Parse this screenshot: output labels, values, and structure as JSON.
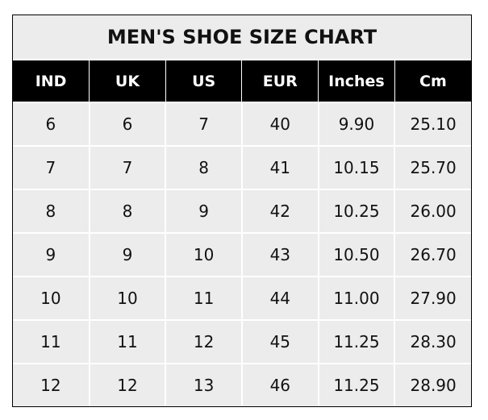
{
  "title": "MEN'S SHOE SIZE CHART",
  "headers": [
    "IND",
    "UK",
    "US",
    "EUR",
    "Inches",
    "Cm"
  ],
  "rows": [
    [
      "6",
      "6",
      "7",
      "40",
      "9.90",
      "25.10"
    ],
    [
      "7",
      "7",
      "8",
      "41",
      "10.15",
      "25.70"
    ],
    [
      "8",
      "8",
      "9",
      "42",
      "10.25",
      "26.00"
    ],
    [
      "9",
      "9",
      "10",
      "43",
      "10.50",
      "26.70"
    ],
    [
      "10",
      "10",
      "11",
      "44",
      "11.00",
      "27.90"
    ],
    [
      "11",
      "11",
      "12",
      "45",
      "11.25",
      "28.30"
    ],
    [
      "12",
      "12",
      "13",
      "46",
      "11.25",
      "28.90"
    ]
  ],
  "colors": {
    "header_bg": "#000000",
    "cell_bg": "#ececec",
    "header_text": "#ffffff"
  }
}
